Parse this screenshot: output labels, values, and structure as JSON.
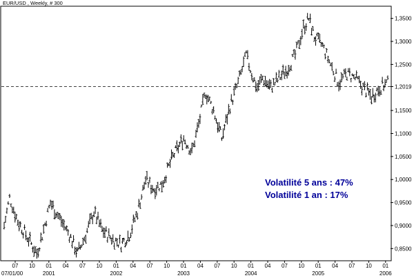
{
  "chart_data": {
    "type": "bar",
    "title": "EUR/USD , Weekly, # 300",
    "xlabel": "",
    "ylabel": "",
    "ylim": [
      0.825,
      1.375
    ],
    "grid": false,
    "reference_line": {
      "value": 1.2019,
      "label": "1,2019",
      "style": "dashed"
    },
    "y_ticks": [
      "0,8500",
      "0,9000",
      "0,9500",
      "1,0000",
      "1,0500",
      "1,1000",
      "1,1500",
      "1,2019",
      "1,2500",
      "1,3000",
      "1,3500"
    ],
    "y_tick_values": [
      0.85,
      0.9,
      0.95,
      1.0,
      1.05,
      1.1,
      1.15,
      1.2019,
      1.25,
      1.3,
      1.35
    ],
    "x_start_label": "07/01/00",
    "x_ticks": [
      {
        "label": "07",
        "year": ""
      },
      {
        "label": "10",
        "year": ""
      },
      {
        "label": "01",
        "year": "2001"
      },
      {
        "label": "04",
        "year": ""
      },
      {
        "label": "07",
        "year": ""
      },
      {
        "label": "10",
        "year": ""
      },
      {
        "label": "01",
        "year": "2002"
      },
      {
        "label": "04",
        "year": ""
      },
      {
        "label": "07",
        "year": ""
      },
      {
        "label": "10",
        "year": ""
      },
      {
        "label": "01",
        "year": "2003"
      },
      {
        "label": "04",
        "year": ""
      },
      {
        "label": "07",
        "year": ""
      },
      {
        "label": "10",
        "year": ""
      },
      {
        "label": "01",
        "year": "2004"
      },
      {
        "label": "04",
        "year": ""
      },
      {
        "label": "07",
        "year": ""
      },
      {
        "label": "10",
        "year": ""
      },
      {
        "label": "01",
        "year": "2005"
      },
      {
        "label": "04",
        "year": ""
      },
      {
        "label": "07",
        "year": ""
      },
      {
        "label": "10",
        "year": ""
      },
      {
        "label": "01",
        "year": "2006"
      }
    ],
    "series_anchors": [
      [
        0,
        0.9
      ],
      [
        4,
        0.96
      ],
      [
        10,
        0.91
      ],
      [
        18,
        0.87
      ],
      [
        24,
        0.84
      ],
      [
        28,
        0.88
      ],
      [
        34,
        0.95
      ],
      [
        40,
        0.92
      ],
      [
        48,
        0.88
      ],
      [
        54,
        0.84
      ],
      [
        60,
        0.88
      ],
      [
        66,
        0.93
      ],
      [
        72,
        0.89
      ],
      [
        80,
        0.87
      ],
      [
        86,
        0.86
      ],
      [
        92,
        0.88
      ],
      [
        98,
        0.93
      ],
      [
        104,
        1.0
      ],
      [
        110,
        0.98
      ],
      [
        116,
        0.99
      ],
      [
        124,
        1.05
      ],
      [
        132,
        1.09
      ],
      [
        138,
        1.06
      ],
      [
        143,
        1.12
      ],
      [
        148,
        1.19
      ],
      [
        154,
        1.15
      ],
      [
        160,
        1.09
      ],
      [
        166,
        1.16
      ],
      [
        172,
        1.21
      ],
      [
        178,
        1.27
      ],
      [
        182,
        1.23
      ],
      [
        186,
        1.2
      ],
      [
        190,
        1.22
      ],
      [
        196,
        1.2
      ],
      [
        202,
        1.22
      ],
      [
        208,
        1.24
      ],
      [
        214,
        1.27
      ],
      [
        220,
        1.33
      ],
      [
        224,
        1.35
      ],
      [
        228,
        1.31
      ],
      [
        234,
        1.29
      ],
      [
        240,
        1.25
      ],
      [
        246,
        1.21
      ],
      [
        252,
        1.23
      ],
      [
        258,
        1.22
      ],
      [
        264,
        1.2
      ],
      [
        270,
        1.18
      ],
      [
        276,
        1.2
      ],
      [
        282,
        1.21
      ]
    ],
    "bar_count": 283
  },
  "annotations": {
    "line1": "Volatilité 5 ans : 47%",
    "line2": "Volatilité 1 an : 17%"
  }
}
